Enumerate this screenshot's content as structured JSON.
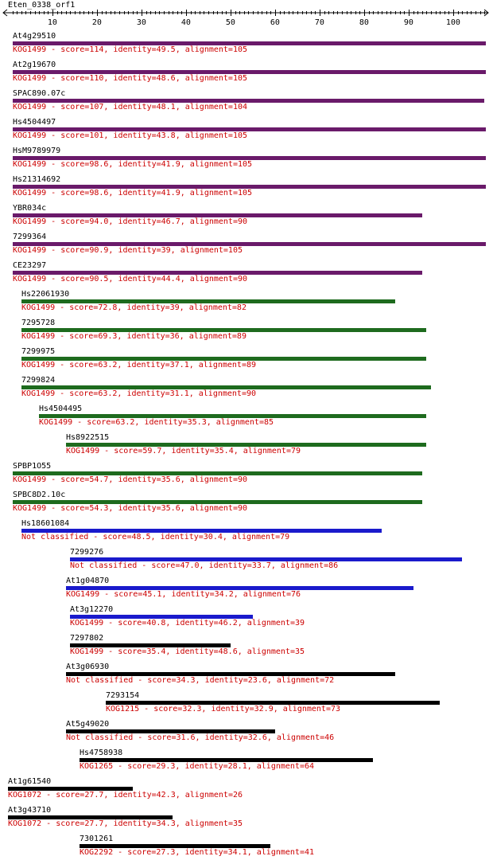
{
  "query": {
    "title": "Eten_0338_orf1",
    "scale_min": 1,
    "scale_max": 107,
    "ticks": [
      10,
      20,
      30,
      40,
      50,
      60,
      70,
      80,
      90,
      100
    ]
  },
  "colors": {
    "purple": "#6a1a6a",
    "green": "#1e6b1e",
    "blue": "#1a1acc",
    "black": "#000000",
    "label_red": "#cc0000"
  },
  "hits": [
    {
      "name": "At4g29510",
      "start": 1,
      "end": 107,
      "color": "purple",
      "desc": "KOG1499 - score=114, identity=49.5, alignment=105"
    },
    {
      "name": "At2g19670",
      "start": 1,
      "end": 107,
      "color": "purple",
      "desc": "KOG1499 - score=110, identity=48.6, alignment=105"
    },
    {
      "name": "SPAC890.07c",
      "start": 1,
      "end": 106,
      "color": "purple",
      "desc": "KOG1499 - score=107, identity=48.1, alignment=104"
    },
    {
      "name": "Hs4504497",
      "start": 1,
      "end": 107,
      "color": "purple",
      "desc": "KOG1499 - score=101, identity=43.8, alignment=105"
    },
    {
      "name": "HsM9789979",
      "start": 1,
      "end": 107,
      "color": "purple",
      "desc": "KOG1499 - score=98.6, identity=41.9, alignment=105"
    },
    {
      "name": "Hs21314692",
      "start": 1,
      "end": 107,
      "color": "purple",
      "desc": "KOG1499 - score=98.6, identity=41.9, alignment=105"
    },
    {
      "name": "YBR034c",
      "start": 1,
      "end": 92,
      "color": "purple",
      "desc": "KOG1499 - score=94.0, identity=46.7, alignment=90"
    },
    {
      "name": "7299364",
      "start": 1,
      "end": 107,
      "color": "purple",
      "desc": "KOG1499 - score=90.9, identity=39, alignment=105"
    },
    {
      "name": "CE23297",
      "start": 1,
      "end": 92,
      "color": "purple",
      "desc": "KOG1499 - score=90.5, identity=44.4, alignment=90"
    },
    {
      "name": "Hs22061930",
      "start": 3,
      "end": 86,
      "color": "green",
      "desc": "KOG1499 - score=72.8, identity=39, alignment=82"
    },
    {
      "name": "7295728",
      "start": 3,
      "end": 93,
      "color": "green",
      "desc": "KOG1499 - score=69.3, identity=36, alignment=89"
    },
    {
      "name": "7299975",
      "start": 3,
      "end": 93,
      "color": "green",
      "desc": "KOG1499 - score=63.2, identity=37.1, alignment=89"
    },
    {
      "name": "7299824",
      "start": 3,
      "end": 94,
      "color": "green",
      "desc": "KOG1499 - score=63.2, identity=31.1, alignment=90"
    },
    {
      "name": "Hs4504495",
      "start": 7,
      "end": 93,
      "color": "green",
      "desc": "KOG1499 - score=63.2, identity=35.3, alignment=85"
    },
    {
      "name": "Hs8922515",
      "start": 13,
      "end": 93,
      "color": "green",
      "desc": "KOG1499 - score=59.7, identity=35.4, alignment=79"
    },
    {
      "name": "SPBP1O55",
      "start": 1,
      "end": 92,
      "color": "green",
      "desc": "KOG1499 - score=54.7, identity=35.6, alignment=90"
    },
    {
      "name": "SPBC8D2.10c",
      "start": 1,
      "end": 92,
      "color": "green",
      "desc": "KOG1499 - score=54.3, identity=35.6, alignment=90"
    },
    {
      "name": "Hs18601084",
      "start": 3,
      "end": 83,
      "color": "blue",
      "desc": "Not classified - score=48.5, identity=30.4, alignment=79"
    },
    {
      "name": "7299276",
      "start": 14,
      "end": 101,
      "color": "blue",
      "desc": "Not classified - score=47.0, identity=33.7, alignment=86"
    },
    {
      "name": "At1g04870",
      "start": 13,
      "end": 90,
      "color": "blue",
      "desc": "KOG1499 - score=45.1, identity=34.2, alignment=76"
    },
    {
      "name": "At3g12270",
      "start": 14,
      "end": 54,
      "color": "blue",
      "desc": "KOG1499 - score=40.8, identity=46.2, alignment=39"
    },
    {
      "name": "7297802",
      "start": 14,
      "end": 49,
      "color": "black",
      "desc": "KOG1499 - score=35.4, identity=48.6, alignment=35"
    },
    {
      "name": "At3g06930",
      "start": 13,
      "end": 86,
      "color": "black",
      "desc": "Not classified - score=34.3, identity=23.6, alignment=72"
    },
    {
      "name": "7293154",
      "start": 22,
      "end": 96,
      "color": "black",
      "desc": "KOG1215 - score=32.3, identity=32.9, alignment=73"
    },
    {
      "name": "At5g49020",
      "start": 13,
      "end": 59,
      "color": "black",
      "desc": "Not classified - score=31.6, identity=32.6, alignment=46"
    },
    {
      "name": "Hs4758938",
      "start": 16,
      "end": 81,
      "color": "black",
      "desc": "KOG1265 - score=29.3, identity=28.1, alignment=64"
    },
    {
      "name": "At1g61540",
      "start": 0,
      "end": 27,
      "color": "black",
      "desc": "KOG1072 - score=27.7, identity=42.3, alignment=26"
    },
    {
      "name": "At3g43710",
      "start": 0,
      "end": 36,
      "color": "black",
      "desc": "KOG1072 - score=27.7, identity=34.3, alignment=35"
    },
    {
      "name": "7301261",
      "start": 16,
      "end": 58,
      "color": "black",
      "desc": "KOG2292 - score=27.3, identity=34.1, alignment=41"
    }
  ]
}
